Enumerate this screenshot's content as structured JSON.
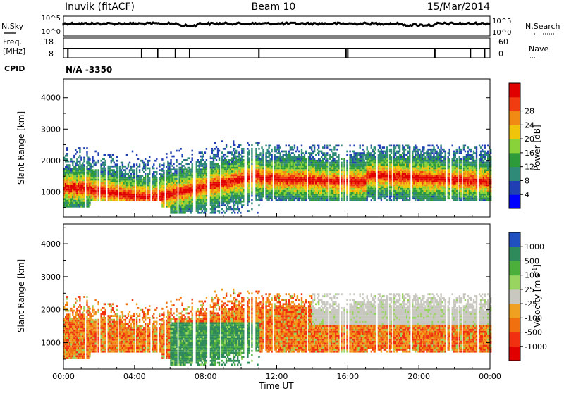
{
  "header": {
    "station": "Inuvik (fitACF)",
    "beam": "Beam 10",
    "date": "15/Mar/2014"
  },
  "top_panels": {
    "nsky_label": "N.Sky",
    "nsky_ticks": [
      "10^5",
      "10^0"
    ],
    "nsearch_label": "N.Search",
    "nsearch_ticks": [
      "10^5",
      "10^0"
    ],
    "freq_label": "Freq.",
    "freq_unit": "[MHz]",
    "freq_ticks": [
      "18",
      "8"
    ],
    "nave_label": "Nave",
    "nave_ticks": [
      "60",
      "0"
    ],
    "cpid_label": "CPID",
    "cpid_value": "N/A -3350"
  },
  "chart_data": [
    {
      "type": "heatmap",
      "name": "power-panel",
      "xlabel": "",
      "ylabel": "Slant Range [km]",
      "yticks": [
        "1000",
        "2000",
        "3000",
        "4000"
      ],
      "ylim": [
        200,
        4600
      ],
      "xlim_hours": [
        0,
        24
      ],
      "colorbar_label": "Power [dB]",
      "colorbar_ticks": [
        "4",
        "8",
        "12",
        "16",
        "20",
        "24",
        "28"
      ],
      "colorbar_colors": [
        "#0000ff",
        "#1f3fb3",
        "#2f8a78",
        "#2e9b3a",
        "#8ad23a",
        "#f0c40a",
        "#f08a14",
        "#f03c10",
        "#e00000"
      ],
      "echo_bands_km": [
        {
          "hours": [
            0,
            1.5
          ],
          "range": [
            500,
            2400
          ]
        },
        {
          "hours": [
            1.5,
            5.5
          ],
          "range": [
            700,
            2300
          ]
        },
        {
          "hours": [
            6,
            11
          ],
          "range": [
            300,
            2600
          ]
        },
        {
          "hours": [
            11,
            24
          ],
          "range": [
            700,
            2500
          ]
        }
      ]
    },
    {
      "type": "heatmap",
      "name": "velocity-panel",
      "xlabel": "Time UT",
      "ylabel": "Slant Range [km]",
      "xticks": [
        "00:00",
        "04:00",
        "08:00",
        "12:00",
        "16:00",
        "20:00",
        "00:00"
      ],
      "yticks": [
        "1000",
        "2000",
        "3000",
        "4000"
      ],
      "ylim": [
        200,
        4600
      ],
      "xlim_hours": [
        0,
        24
      ],
      "colorbar_label": "Velocity [m s^-1]",
      "colorbar_ticks": [
        "1000",
        "500",
        "100",
        "25",
        "-25",
        "-100",
        "-500",
        "-1000"
      ],
      "colorbar_colors": [
        "#2050c0",
        "#2e8a5a",
        "#4caf3c",
        "#9ad460",
        "#c8c8c0",
        "#f0a020",
        "#f07010",
        "#f03010",
        "#e00000"
      ]
    }
  ]
}
